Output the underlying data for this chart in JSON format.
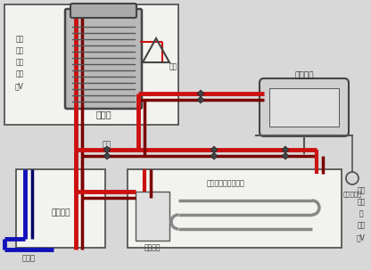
{
  "bg_color": "#d8d8d8",
  "fig_width": 4.16,
  "fig_height": 3.03,
  "dpi": 100,
  "colors": {
    "red1": "#cc1111",
    "red2": "#7a0000",
    "blue": "#1111bb",
    "border": "#555555",
    "white": "#ffffff",
    "light_bg": "#f2f2ee",
    "gray_comp": "#c8c8c8",
    "dark_gray": "#444444",
    "line_gray": "#666666"
  },
  "labels": {
    "hot_water_tank": "热水箱",
    "fan_coil": "风机盘管",
    "heat_source": "热源机组",
    "distributor": "集分水器",
    "floor_heating": "保温热辐射地板采暖",
    "valve": "阀门",
    "expansion": "膨胀",
    "indoor_thermostat": "室内温控器",
    "left_text": "进入\n热泵\n热水\n系统\n供V",
    "right_text": "进入\n蓄冷\n采\n系统\n供V",
    "underground": "去地下"
  }
}
